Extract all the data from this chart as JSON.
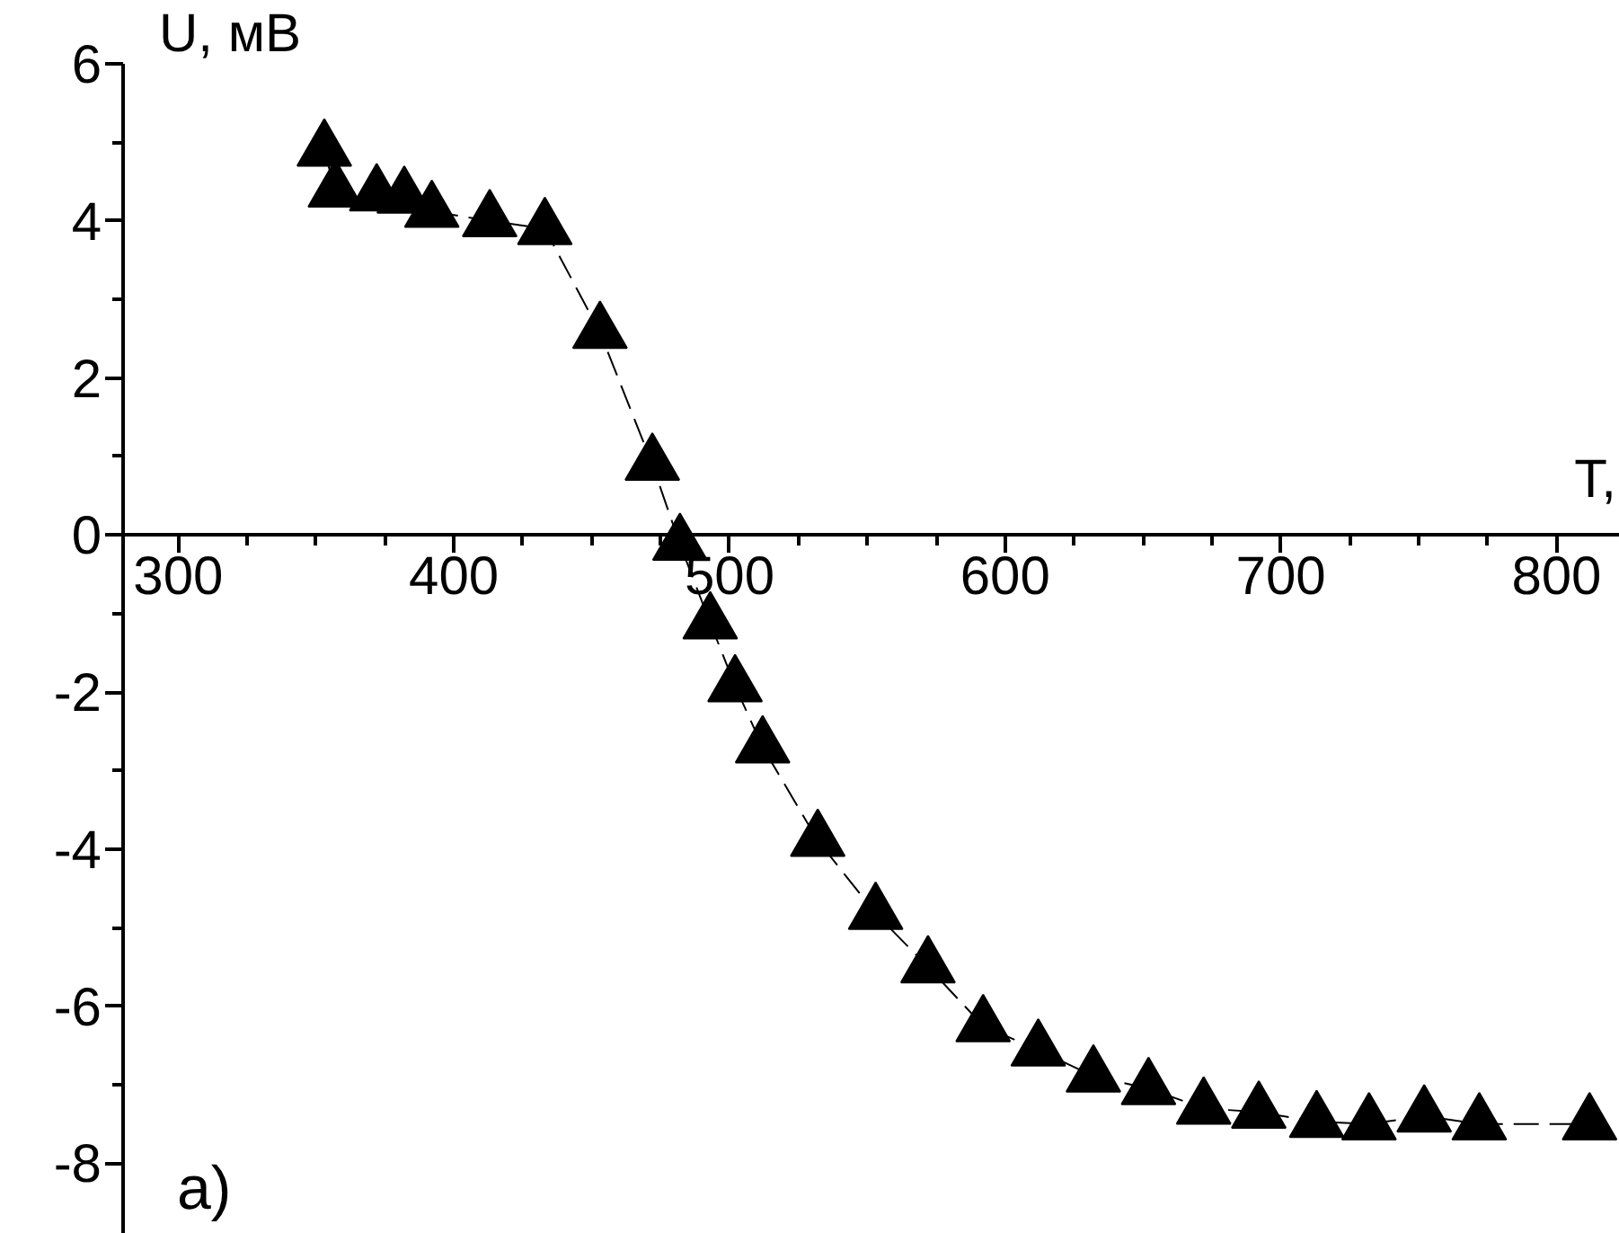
{
  "chart_data": {
    "type": "line",
    "xlabel": "T,",
    "ylabel": "U, мВ",
    "x": [
      353,
      357,
      372,
      382,
      392,
      413,
      433,
      453,
      472,
      482,
      493,
      502,
      512,
      532,
      553,
      572,
      592,
      612,
      632,
      652,
      672,
      692,
      713,
      732,
      752,
      772,
      812
    ],
    "series": [
      {
        "color": "#000000",
        "values": [
          4.9,
          4.38,
          4.33,
          4.3,
          4.12,
          4.0,
          3.9,
          2.58,
          0.9,
          -0.12,
          -1.12,
          -1.92,
          -2.7,
          -3.89,
          -4.82,
          -5.5,
          -6.25,
          -6.56,
          -6.89,
          -7.05,
          -7.3,
          -7.35,
          -7.47,
          -7.5,
          -7.4,
          -7.5,
          -7.5
        ]
      }
    ],
    "xlim": [
      280,
      823
    ],
    "ylim": [
      -8.9,
      6
    ],
    "xticks": [
      300,
      400,
      500,
      600,
      700,
      800
    ],
    "yticks": [
      6,
      4,
      2,
      0,
      -2,
      -4,
      -6,
      -8
    ],
    "marker": "triangle",
    "line_style": "dashed",
    "grid": false,
    "annotations": [
      "a)"
    ]
  }
}
